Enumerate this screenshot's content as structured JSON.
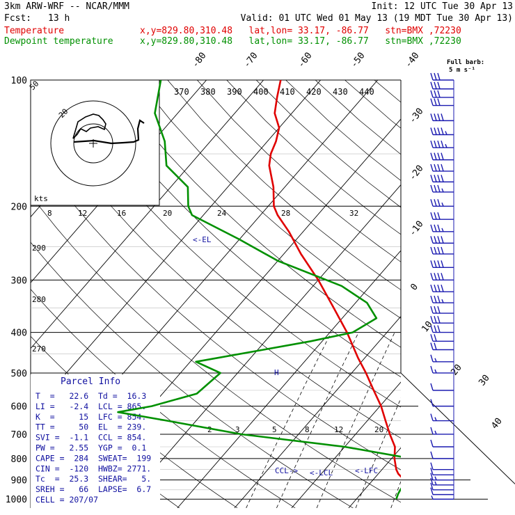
{
  "header": {
    "model": "3km ARW-WRF -- NCAR/MMM",
    "fcst_label": "Fcst:",
    "fcst_value": "13 h",
    "init": "Init: 12 UTC Tue 30 Apr 13",
    "valid": "Valid: 01 UTC Wed 01 May 13 (19 MDT Tue 30 Apr 13)",
    "temp_legend": "Temperature",
    "dew_legend": "Dewpoint temperature",
    "point_info": "x,y=829.80,310.48   lat,lon= 33.17, -86.77   stn=BMX ,72230"
  },
  "colors": {
    "temperature": "#e00000",
    "dewpoint": "#009000",
    "text_blue": "#1010a0",
    "wind": "#1a1ab0",
    "grid": "#000000"
  },
  "barb_legend": {
    "line1": "Full barb:",
    "line2": "5 m s⁻¹"
  },
  "parcel_info": {
    "title": "Parcel Info",
    "rows": [
      "T  =   22.6  Td =  16.3",
      "LI =   -2.4  LCL = 865.",
      "K  =     15  LFC = 854.",
      "TT =     50  EL  = 239.",
      "SVI =  -1.1  CCL = 854.",
      "PW =   2.55  YGP =  0.1",
      "CAPE =  284  SWEAT=  199",
      "CIN =  -120  HWBZ= 2771.",
      "Tc  =  25.3  SHEAR=   5.",
      "SREH =   66  LAPSE=  6.7",
      "CELL = 207/07"
    ]
  },
  "hodograph": {
    "units": "kts",
    "ring_label": "20",
    "outer_label": "50"
  },
  "markers": {
    "el": "<-EL",
    "ccl": "CCL->",
    "lcl": "<-LCL",
    "lfc": "<-LFC",
    "h": "H"
  },
  "chart_data": {
    "type": "line",
    "title": "Skew-T log-P diagram",
    "yaxis": {
      "scale": "log",
      "ticks": [
        100,
        200,
        300,
        400,
        500,
        600,
        700,
        800,
        900,
        1000
      ]
    },
    "isotherm_labels": [
      -80,
      -70,
      -60,
      -50,
      -40,
      -30,
      -20,
      -10,
      0,
      10,
      20,
      30,
      40
    ],
    "theta_labels": [
      370,
      380,
      390,
      400,
      410,
      420,
      430,
      440
    ],
    "theta_left_labels": [
      290,
      280,
      270
    ],
    "mixing_ratio_labels_upper": [
      8,
      12,
      16,
      20,
      24,
      28,
      32
    ],
    "mixing_ratio_labels_lower": [
      2,
      3,
      5,
      8,
      12,
      20
    ],
    "series": [
      {
        "name": "Temperature",
        "points": [
          [
            1000,
            24.5
          ],
          [
            985,
            23.5
          ],
          [
            950,
            20.0
          ],
          [
            920,
            17.0
          ],
          [
            900,
            15.5
          ],
          [
            870,
            13.5
          ],
          [
            850,
            12.5
          ],
          [
            800,
            10.5
          ],
          [
            750,
            8.8
          ],
          [
            700,
            6.0
          ],
          [
            650,
            3.2
          ],
          [
            600,
            0.2
          ],
          [
            550,
            -3.5
          ],
          [
            500,
            -7.5
          ],
          [
            460,
            -11.2
          ],
          [
            400,
            -17.0
          ],
          [
            350,
            -23.0
          ],
          [
            300,
            -30.0
          ],
          [
            260,
            -37.0
          ],
          [
            230,
            -42.5
          ],
          [
            210,
            -47.0
          ],
          [
            200,
            -49.0
          ],
          [
            180,
            -52.0
          ],
          [
            160,
            -56.0
          ],
          [
            150,
            -57.5
          ],
          [
            140,
            -58.5
          ],
          [
            130,
            -60.0
          ],
          [
            120,
            -63.0
          ],
          [
            110,
            -65.0
          ],
          [
            100,
            -67.0
          ]
        ]
      },
      {
        "name": "Dewpoint temperature",
        "points": [
          [
            1000,
            17.0
          ],
          [
            970,
            16.5
          ],
          [
            950,
            16.3
          ],
          [
            900,
            16.0
          ],
          [
            870,
            15.0
          ],
          [
            850,
            14.0
          ],
          [
            800,
            13.5
          ],
          [
            750,
            0.0
          ],
          [
            700,
            -20.0
          ],
          [
            650,
            -35.0
          ],
          [
            620,
            -45.0
          ],
          [
            600,
            -40.0
          ],
          [
            560,
            -34.0
          ],
          [
            500,
            -33.0
          ],
          [
            470,
            -39.0
          ],
          [
            440,
            -29.0
          ],
          [
            420,
            -22.0
          ],
          [
            400,
            -16.0
          ],
          [
            370,
            -14.0
          ],
          [
            340,
            -18.0
          ],
          [
            310,
            -25.0
          ],
          [
            270,
            -40.0
          ],
          [
            240,
            -50.0
          ],
          [
            210,
            -62.0
          ],
          [
            200,
            -64.0
          ],
          [
            180,
            -67.0
          ],
          [
            160,
            -74.0
          ],
          [
            140,
            -78.0
          ],
          [
            120,
            -84.0
          ],
          [
            100,
            -88.0
          ]
        ]
      }
    ],
    "wind_barbs": [
      {
        "p": 1000,
        "barbs": 0.5
      },
      {
        "p": 975,
        "barbs": 1
      },
      {
        "p": 950,
        "barbs": 1
      },
      {
        "p": 925,
        "barbs": 1.5
      },
      {
        "p": 900,
        "barbs": 1.5
      },
      {
        "p": 875,
        "barbs": 1
      },
      {
        "p": 850,
        "barbs": 1
      },
      {
        "p": 800,
        "barbs": 1
      },
      {
        "p": 750,
        "barbs": 1
      },
      {
        "p": 700,
        "barbs": 1.5
      },
      {
        "p": 650,
        "barbs": 1.5
      },
      {
        "p": 600,
        "barbs": 1
      },
      {
        "p": 550,
        "barbs": 1
      },
      {
        "p": 500,
        "barbs": 1.5
      },
      {
        "p": 470,
        "barbs": 1.5
      },
      {
        "p": 440,
        "barbs": 2
      },
      {
        "p": 420,
        "barbs": 2
      },
      {
        "p": 400,
        "barbs": 3
      },
      {
        "p": 380,
        "barbs": 3
      },
      {
        "p": 360,
        "barbs": 3
      },
      {
        "p": 340,
        "barbs": 3.5
      },
      {
        "p": 320,
        "barbs": 4
      },
      {
        "p": 300,
        "barbs": 4
      },
      {
        "p": 280,
        "barbs": 4
      },
      {
        "p": 260,
        "barbs": 4
      },
      {
        "p": 245,
        "barbs": 4
      },
      {
        "p": 230,
        "barbs": 3.5
      },
      {
        "p": 215,
        "barbs": 3
      },
      {
        "p": 200,
        "barbs": 3.5
      },
      {
        "p": 185,
        "barbs": 3.5
      },
      {
        "p": 175,
        "barbs": 4
      },
      {
        "p": 165,
        "barbs": 4
      },
      {
        "p": 155,
        "barbs": 4
      },
      {
        "p": 145,
        "barbs": 4.5
      },
      {
        "p": 135,
        "barbs": 4.5
      },
      {
        "p": 125,
        "barbs": 4
      },
      {
        "p": 115,
        "barbs": 3
      },
      {
        "p": 110,
        "barbs": 3
      },
      {
        "p": 105,
        "barbs": 3
      },
      {
        "p": 100,
        "barbs": 3
      }
    ],
    "grid": true
  }
}
